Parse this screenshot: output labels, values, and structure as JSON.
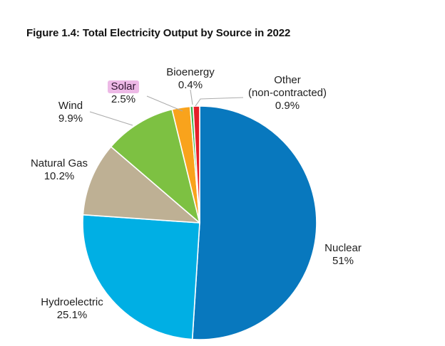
{
  "chart_data": {
    "type": "pie",
    "title": "Figure 1.4: Total Electricity Output by Source in 2022",
    "direction": "clockwise",
    "start_angle_deg": 0,
    "legend_position": "none",
    "labels_style": "outside-callouts",
    "leader_line_color": "#acacac",
    "slices": [
      {
        "label": "Nuclear",
        "value": 51,
        "value_label": "51%",
        "color": "#0878BE"
      },
      {
        "label": "Hydroelectric",
        "value": 25.1,
        "value_label": "25.1%",
        "color": "#00AFE4"
      },
      {
        "label": "Natural Gas",
        "value": 10.2,
        "value_label": "10.2%",
        "color": "#BEB094"
      },
      {
        "label": "Wind",
        "value": 9.9,
        "value_label": "9.9%",
        "color": "#7DC142"
      },
      {
        "label": "Solar",
        "value": 2.5,
        "value_label": "2.5%",
        "color": "#F9A31C",
        "highlighted": true,
        "highlight_color": "#EDB9E6"
      },
      {
        "label": "Bioenergy",
        "value": 0.4,
        "value_label": "0.4%",
        "color": "#3AB54A"
      },
      {
        "label": "Other",
        "sublabel": "(non-contracted)",
        "value": 0.9,
        "value_label": "0.9%",
        "color": "#E51E28"
      }
    ]
  }
}
